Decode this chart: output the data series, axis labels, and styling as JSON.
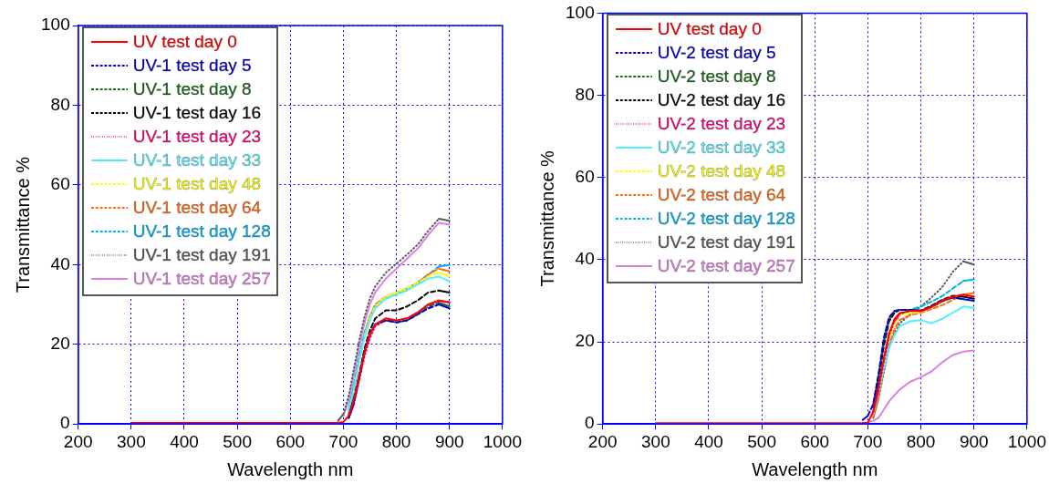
{
  "chart_data": [
    {
      "type": "line",
      "xlabel": "Wavelength nm",
      "ylabel": "Transmittance %",
      "xlim": [
        200,
        1000
      ],
      "xticks": [
        200,
        300,
        400,
        500,
        600,
        700,
        800,
        900,
        1000
      ],
      "ylim": [
        0,
        100
      ],
      "yticks": [
        0,
        20,
        40,
        60,
        80,
        100
      ],
      "grid": true,
      "legend": "top left",
      "marker": "none",
      "x": [
        300,
        400,
        500,
        600,
        680,
        690,
        700,
        710,
        720,
        730,
        740,
        750,
        760,
        780,
        800,
        820,
        840,
        860,
        880,
        900
      ],
      "series": [
        {
          "name": "UV test day 0",
          "color": "#ff0000",
          "line_style": "solid",
          "values": [
            0.3,
            0.3,
            0.3,
            0.3,
            0.3,
            0.3,
            0.5,
            2,
            6,
            12,
            18,
            22.5,
            25,
            26.5,
            26,
            26.5,
            28,
            30,
            31,
            30.5
          ]
        },
        {
          "name": "UV-1 test day 5",
          "color": "#0000cc",
          "line_style": "dashed",
          "values": [
            null,
            null,
            null,
            null,
            null,
            null,
            null,
            1.5,
            5.5,
            11.5,
            18,
            22.5,
            25,
            26,
            25.5,
            26,
            27.5,
            29,
            30,
            29
          ]
        },
        {
          "name": "UV-1 test day 8",
          "color": "#1a6b1a",
          "line_style": "dashed",
          "values": [
            null,
            null,
            null,
            null,
            null,
            null,
            null,
            1.8,
            6,
            12,
            18,
            22.5,
            25,
            26,
            25.5,
            26,
            27.5,
            29.5,
            30.5,
            29.5
          ]
        },
        {
          "name": "UV-1 test day 16",
          "color": "#000000",
          "line_style": "dashed",
          "values": [
            null,
            null,
            null,
            null,
            null,
            null,
            null,
            2,
            6.5,
            12.5,
            19,
            23.5,
            26.5,
            28.5,
            28.5,
            29.5,
            31,
            33,
            33.5,
            33
          ]
        },
        {
          "name": "UV-1 test day 23",
          "color": "#ff0080",
          "line_style": "dotted",
          "values": [
            null,
            null,
            null,
            null,
            null,
            null,
            null,
            1.5,
            5,
            11,
            17,
            21.5,
            24.5,
            26,
            26,
            26.5,
            28,
            30,
            31,
            30.5
          ]
        },
        {
          "name": "UV-1 test day 33",
          "color": "#55eeff",
          "line_style": "solid",
          "values": [
            null,
            null,
            null,
            null,
            null,
            null,
            null,
            3,
            9,
            16,
            22,
            26,
            29,
            31.5,
            32.5,
            33.5,
            35,
            36.5,
            37,
            35.8
          ]
        },
        {
          "name": "UV-1 test day 48",
          "color": "#ffff00",
          "line_style": "dashed",
          "values": [
            null,
            null,
            null,
            null,
            null,
            null,
            null,
            null,
            null,
            null,
            22,
            26.5,
            29.5,
            32,
            33,
            34,
            35.5,
            37,
            38,
            37
          ]
        },
        {
          "name": "UV-1 test day 64",
          "color": "#ff6a10",
          "line_style": "dashed",
          "values": [
            null,
            null,
            null,
            null,
            null,
            null,
            null,
            2.5,
            9,
            16,
            22.5,
            27,
            30,
            32,
            33,
            34,
            35.5,
            37.5,
            39,
            38.3
          ]
        },
        {
          "name": "UV-1 test day 128",
          "color": "#00b0f0",
          "line_style": "dashed",
          "values": [
            null,
            null,
            null,
            null,
            null,
            null,
            null,
            3.5,
            10,
            17,
            23,
            27,
            29.5,
            31.5,
            32.5,
            34,
            35.5,
            37.5,
            39.5,
            39.9
          ]
        },
        {
          "name": "UV-1 test day 191",
          "color": "#595959",
          "line_style": "dotted",
          "values": [
            null,
            null,
            null,
            null,
            null,
            0.8,
            2.5,
            7,
            14,
            21,
            27,
            31.5,
            34.5,
            38,
            40.2,
            42.5,
            45,
            48.5,
            51.5,
            51
          ]
        },
        {
          "name": "UV-1 test day 257",
          "color": "#dd80dd",
          "line_style": "solid",
          "values": [
            null,
            null,
            null,
            null,
            null,
            null,
            2,
            6,
            12.5,
            19.5,
            25.5,
            30,
            33,
            36.5,
            39,
            41.5,
            44,
            47.5,
            50.5,
            50
          ]
        }
      ]
    },
    {
      "type": "line",
      "xlabel": "Wavelength nm",
      "ylabel": "Transmittance %",
      "xlim": [
        200,
        1000
      ],
      "xticks": [
        200,
        300,
        400,
        500,
        600,
        700,
        800,
        900,
        1000
      ],
      "ylim": [
        0,
        100
      ],
      "yticks": [
        0,
        20,
        40,
        60,
        80,
        100
      ],
      "grid": true,
      "legend": "top left",
      "marker": "none",
      "x": [
        300,
        400,
        500,
        600,
        680,
        690,
        700,
        710,
        720,
        730,
        740,
        750,
        760,
        780,
        800,
        820,
        840,
        860,
        880,
        900
      ],
      "series": [
        {
          "name": "UV test day 0",
          "color": "#ff0000",
          "line_style": "solid",
          "values": [
            0.2,
            0.2,
            0.2,
            0.2,
            0.2,
            0.2,
            0.3,
            3,
            9,
            16,
            22,
            25.5,
            27,
            27.5,
            27.5,
            28.5,
            30,
            31,
            31.5,
            31
          ]
        },
        {
          "name": "UV-2 test day 5",
          "color": "#0000cc",
          "line_style": "dashed",
          "values": [
            null,
            null,
            null,
            null,
            null,
            1,
            2,
            4.8,
            12,
            20.9,
            26,
            27.5,
            27.8,
            27.8,
            27.5,
            28.6,
            30,
            30.8,
            30.4,
            30
          ]
        },
        {
          "name": "UV-2 test day 8",
          "color": "#1a6b1a",
          "line_style": "dashed",
          "values": [
            null,
            null,
            null,
            null,
            null,
            null,
            null,
            4.5,
            11.5,
            20,
            25.5,
            27.5,
            27.8,
            27.8,
            27.5,
            28.5,
            29.8,
            30.8,
            30.4,
            null
          ]
        },
        {
          "name": "UV-2 test day 16",
          "color": "#000000",
          "line_style": "dashed",
          "values": [
            null,
            null,
            null,
            null,
            null,
            null,
            null,
            4,
            10.5,
            19,
            25,
            27,
            27.8,
            27.8,
            27.6,
            28.8,
            30.2,
            31.2,
            31,
            30.5
          ]
        },
        {
          "name": "UV-2 test day 23",
          "color": "#ff0080",
          "line_style": "dotted",
          "values": [
            null,
            null,
            null,
            null,
            null,
            null,
            null,
            3,
            8,
            15,
            21.5,
            25,
            26.8,
            null,
            null,
            null,
            null,
            null,
            null,
            null
          ]
        },
        {
          "name": "UV-2 test day 33",
          "color": "#55eeff",
          "line_style": "solid",
          "values": [
            null,
            null,
            null,
            null,
            null,
            null,
            null,
            2.5,
            7.5,
            13.5,
            18.5,
            21.5,
            23.8,
            25,
            25.3,
            24.5,
            25.6,
            27.1,
            28.6,
            28.2
          ]
        },
        {
          "name": "UV-2 test day 48",
          "color": "#ffff00",
          "line_style": "dashed",
          "values": [
            null,
            null,
            null,
            null,
            null,
            null,
            null,
            null,
            null,
            null,
            21,
            24.5,
            26.5,
            27,
            27.3,
            28.5,
            null,
            null,
            null,
            null
          ]
        },
        {
          "name": "UV-2 test day 64",
          "color": "#ff6a10",
          "line_style": "dashed",
          "values": [
            null,
            null,
            null,
            null,
            null,
            null,
            null,
            1.8,
            6.5,
            13,
            19,
            23,
            25.3,
            26.5,
            27.1,
            28,
            28.9,
            30.2,
            31.5,
            31.9
          ]
        },
        {
          "name": "UV-2 test day 128",
          "color": "#00b0f0",
          "line_style": "dashed",
          "values": [
            null,
            null,
            null,
            null,
            null,
            null,
            null,
            2.5,
            8,
            15,
            21,
            24.5,
            26.5,
            27.8,
            28.6,
            29.8,
            31.1,
            33,
            34.8,
            35.2
          ]
        },
        {
          "name": "UV-2 test day 191",
          "color": "#595959",
          "line_style": "dotted",
          "values": [
            null,
            null,
            null,
            null,
            null,
            null,
            null,
            1.5,
            6.2,
            12.5,
            18.7,
            22,
            24.5,
            26.7,
            28.6,
            30.8,
            33.3,
            37,
            39.6,
            38.8
          ]
        },
        {
          "name": "UV-2 test day 257",
          "color": "#dd80dd",
          "line_style": "solid",
          "values": [
            null,
            null,
            null,
            null,
            null,
            null,
            0.4,
            0.8,
            1.5,
            3.5,
            5.5,
            7,
            8.4,
            10.3,
            11.4,
            12.8,
            15,
            16.8,
            17.6,
            17.9
          ]
        }
      ]
    }
  ]
}
